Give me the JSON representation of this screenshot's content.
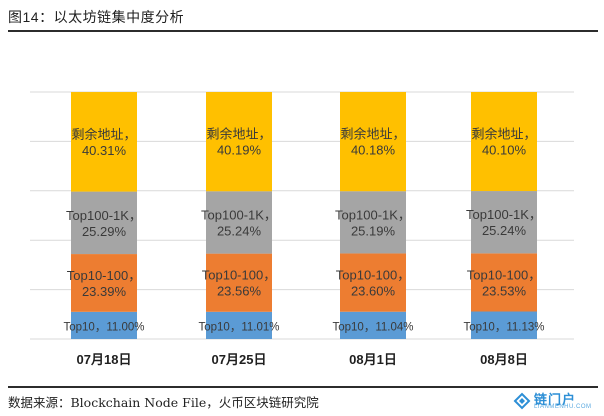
{
  "title": "图14：以太坊链集中度分析",
  "source": "数据来源：Blockchain Node File，火币区块链研究院",
  "logo": {
    "text": "链门户",
    "sub": "LIANMENHU.COM"
  },
  "colors": {
    "top10": "#5b9bd5",
    "top10_100": "#ed7d31",
    "top100_1k": "#a5a5a5",
    "rest": "#ffc000",
    "gridline": "#d9d9d9",
    "label": "#3a3a3a"
  },
  "chart_data": {
    "type": "bar",
    "stacked": true,
    "percent_stacked": true,
    "categories": [
      "07月18日",
      "07月25日",
      "08月1日",
      "08月8日"
    ],
    "series": [
      {
        "name": "Top10",
        "values": [
          11.0,
          11.01,
          11.04,
          11.13
        ],
        "labels": [
          "Top10，11.00%",
          "Top10，11.01%",
          "Top10，11.04%",
          "Top10，11.13%"
        ]
      },
      {
        "name": "Top10-100",
        "values": [
          23.39,
          23.56,
          23.6,
          23.53
        ],
        "labels": [
          "Top10-100，\n23.39%",
          "Top10-100，\n23.56%",
          "Top10-100，\n23.60%",
          "Top10-100，\n23.53%"
        ]
      },
      {
        "name": "Top100-1K",
        "values": [
          25.29,
          25.24,
          25.19,
          25.24
        ],
        "labels": [
          "Top100-1K，\n25.29%",
          "Top100-1K，\n25.24%",
          "Top100-1K，\n25.19%",
          "Top100-1K，\n25.24%"
        ]
      },
      {
        "name": "剩余地址",
        "values": [
          40.31,
          40.19,
          40.18,
          40.1
        ],
        "labels": [
          "剩余地址，\n40.31%",
          "剩余地址，\n40.19%",
          "剩余地址，\n40.18%",
          "剩余地址，\n40.10%"
        ]
      }
    ],
    "ylim": [
      0,
      100
    ],
    "grid": true,
    "legend": "none",
    "title": "",
    "xlabel": "",
    "ylabel": ""
  }
}
